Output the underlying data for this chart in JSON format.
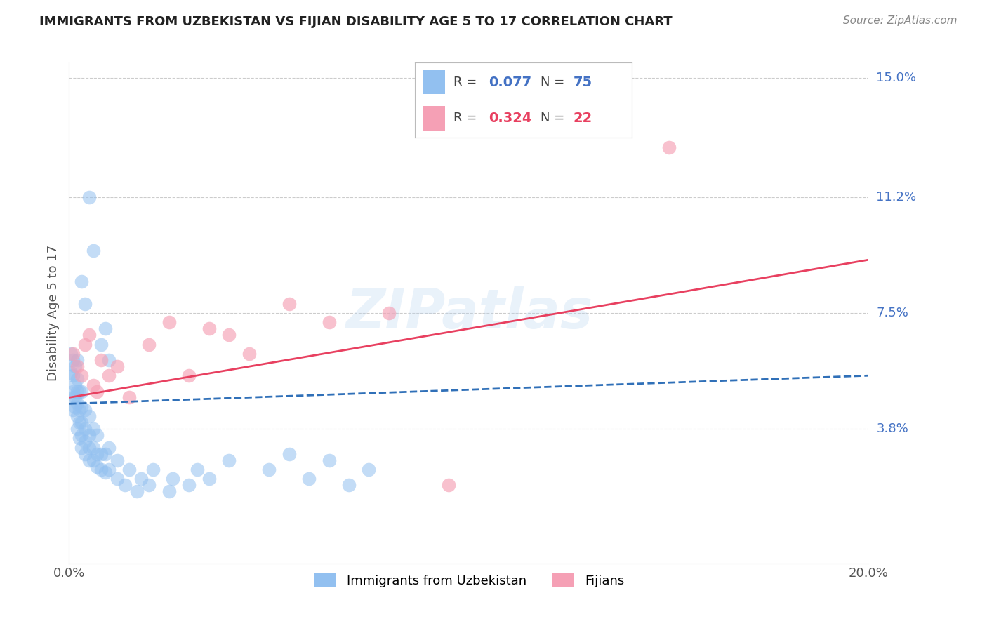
{
  "title": "IMMIGRANTS FROM UZBEKISTAN VS FIJIAN DISABILITY AGE 5 TO 17 CORRELATION CHART",
  "source": "Source: ZipAtlas.com",
  "ylabel": "Disability Age 5 to 17",
  "xlim": [
    0.0,
    0.2
  ],
  "ylim": [
    -0.005,
    0.155
  ],
  "yticks": [
    0.038,
    0.075,
    0.112,
    0.15
  ],
  "ytick_labels": [
    "3.8%",
    "7.5%",
    "11.2%",
    "15.0%"
  ],
  "xticks": [
    0.0,
    0.05,
    0.1,
    0.15,
    0.2
  ],
  "xtick_labels": [
    "0.0%",
    "",
    "",
    "",
    "20.0%"
  ],
  "uzbekistan_color": "#92c0f0",
  "fijian_color": "#f5a0b5",
  "uzbekistan_line_color": "#3070b8",
  "fijian_line_color": "#e84060",
  "legend_label1": "Immigrants from Uzbekistan",
  "legend_label2": "Fijians",
  "watermark": "ZIPatlas",
  "uzbekistan_x": [
    0.0005,
    0.0005,
    0.001,
    0.001,
    0.001,
    0.001,
    0.001,
    0.0015,
    0.0015,
    0.0015,
    0.0015,
    0.002,
    0.002,
    0.002,
    0.002,
    0.002,
    0.002,
    0.0025,
    0.0025,
    0.0025,
    0.0025,
    0.003,
    0.003,
    0.003,
    0.003,
    0.003,
    0.004,
    0.004,
    0.004,
    0.004,
    0.005,
    0.005,
    0.005,
    0.005,
    0.006,
    0.006,
    0.006,
    0.007,
    0.007,
    0.007,
    0.008,
    0.008,
    0.009,
    0.009,
    0.01,
    0.01,
    0.012,
    0.012,
    0.014,
    0.015,
    0.017,
    0.018,
    0.02,
    0.021,
    0.025,
    0.026,
    0.03,
    0.032,
    0.035,
    0.04,
    0.05,
    0.055,
    0.06,
    0.065,
    0.07,
    0.075,
    0.005,
    0.006,
    0.003,
    0.004,
    0.008,
    0.009,
    0.01
  ],
  "uzbekistan_y": [
    0.056,
    0.062,
    0.05,
    0.055,
    0.06,
    0.048,
    0.044,
    0.045,
    0.048,
    0.052,
    0.058,
    0.038,
    0.042,
    0.046,
    0.05,
    0.054,
    0.06,
    0.035,
    0.04,
    0.044,
    0.05,
    0.032,
    0.036,
    0.04,
    0.045,
    0.05,
    0.03,
    0.034,
    0.038,
    0.044,
    0.028,
    0.032,
    0.036,
    0.042,
    0.028,
    0.032,
    0.038,
    0.026,
    0.03,
    0.036,
    0.025,
    0.03,
    0.024,
    0.03,
    0.025,
    0.032,
    0.022,
    0.028,
    0.02,
    0.025,
    0.018,
    0.022,
    0.02,
    0.025,
    0.018,
    0.022,
    0.02,
    0.025,
    0.022,
    0.028,
    0.025,
    0.03,
    0.022,
    0.028,
    0.02,
    0.025,
    0.112,
    0.095,
    0.085,
    0.078,
    0.065,
    0.07,
    0.06
  ],
  "fijian_x": [
    0.001,
    0.002,
    0.003,
    0.004,
    0.005,
    0.006,
    0.007,
    0.008,
    0.01,
    0.012,
    0.015,
    0.02,
    0.025,
    0.03,
    0.035,
    0.04,
    0.045,
    0.055,
    0.065,
    0.08,
    0.095,
    0.15
  ],
  "fijian_y": [
    0.062,
    0.058,
    0.055,
    0.065,
    0.068,
    0.052,
    0.05,
    0.06,
    0.055,
    0.058,
    0.048,
    0.065,
    0.072,
    0.055,
    0.07,
    0.068,
    0.062,
    0.078,
    0.072,
    0.075,
    0.02,
    0.128
  ],
  "uz_trend_start_y": 0.046,
  "uz_trend_end_y": 0.055,
  "fj_trend_start_y": 0.048,
  "fj_trend_end_y": 0.092
}
